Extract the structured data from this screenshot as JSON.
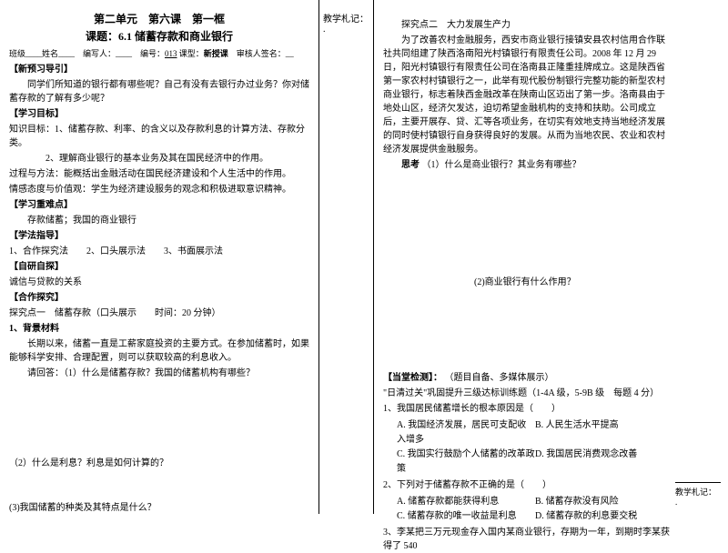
{
  "header": {
    "unit": "第二单元　第六课　第一框",
    "topic": "课题：6.1 储蓄存款和商业银行",
    "meta": "班级____姓名____　编写人：____　编号：013 课型：新授课　审核人签名：__"
  },
  "left": {
    "preview_label": "【新预习导引】",
    "preview_q": "同学们所知道的银行都有哪些呢？自己有没有去银行办过业务？你对储蓄存款的了解有多少呢？",
    "goals_label": "【学习目标】",
    "goals_k": "知识目标：1、储蓄存款、利率、的含义以及存款利息的计算方法、存款分类。",
    "goals_k2": "2、理解商业银行的基本业务及其在国民经济中的作用。",
    "goals_p": "过程与方法：能概括出金融活动在国民经济建设和个人生活中的作用。",
    "goals_e": "情感态度与价值观：学生为经济建设服务的观念和积极进取意识精神。",
    "focus_label": "【学习重难点】",
    "focus1": "　　存款储蓄；我国的商业银行",
    "method_label": "【学法指导】",
    "methods": "1、合作探究法　　2、口头展示法　　3、书面展示法",
    "self_label": "【自研自探】",
    "self_t": "诚信与贷款的关系",
    "coop_label": "【合作探究】",
    "ex1_title": "探究点一　储蓄存款（口头展示　　时间：20 分钟）",
    "bg_label": "1、背景材料",
    "bg_text": "长期以来，储蓄一直是工薪家庭投资的主要方式。在参加储蓄时，如果能够科学安排、合理配置，则可以获取较高的利息收入。",
    "q1": "请回答：（1）什么是储蓄存款？我国的储蓄机构有哪些？",
    "q2": "（2）什么是利息？利息是如何计算的？",
    "q3": "(3)我国储蓄的种类及其特点是什么？"
  },
  "mid": {
    "label": "教学札记："
  },
  "right": {
    "ex2_title": "探究点二　大力发展生产力",
    "ex2_text": "为了改善农村金融服务，西安市商业银行接镇安县农村信用合作联社共同组建了陕西洛南阳光村镇银行有限责任公司。2008 年 12 月 29 日，阳光村镇银行有限责任公司在洛南县正隆重挂牌成立。这是陕西省第一家农村村镇银行之一，此举有现代股份制银行完整功能的新型农村商业银行，标志着陕西金融改革在陕南山区迈出了第一步。洛南县由于地处山区，经济欠发达，迫切希望金融机构的支持和扶助。公司成立后，主要开展存、贷、汇等各项业务，在切实有效地支持当地经济发展的同时使村镇银行自身获得良好的发展。从而为当地农民、农业和农村经济发展提供金融服务。",
    "think_label": "思考",
    "think_q1": "（1）什么是商业银行？其业务有哪些？",
    "think_q2": "(2)商业银行有什么作用？",
    "test_label": "【当堂检测】：",
    "test_note": "（题目自备、多媒体展示）",
    "daily": "\"日清过关\"巩固提升三级达标训练题（1-4A 级，5-9B 级　每题 4 分）",
    "q1": "1、我国居民储蓄增长的根本原因是（　　）",
    "q1a": "A. 我国经济发展，居民可支配收入增多",
    "q1b": "B. 人民生活水平提高",
    "q1c": "C. 我国实行鼓励个人储蓄的改革政策",
    "q1d": "D. 我国居民消费观念改善",
    "q2": "2、下列对于储蓄存款不正确的是（　　）",
    "q2a": "A. 储蓄存款都能获得利息",
    "q2b": "B. 储蓄存款没有风险",
    "q2c": "C. 储蓄存款的唯一收益是利息",
    "q2d": "D. 储蓄存款的利息要交税",
    "q3": "3、李某把三万元现金存入国内某商业银行，存期为一年，到期时李某获得了 540"
  },
  "annot": "教学札记："
}
